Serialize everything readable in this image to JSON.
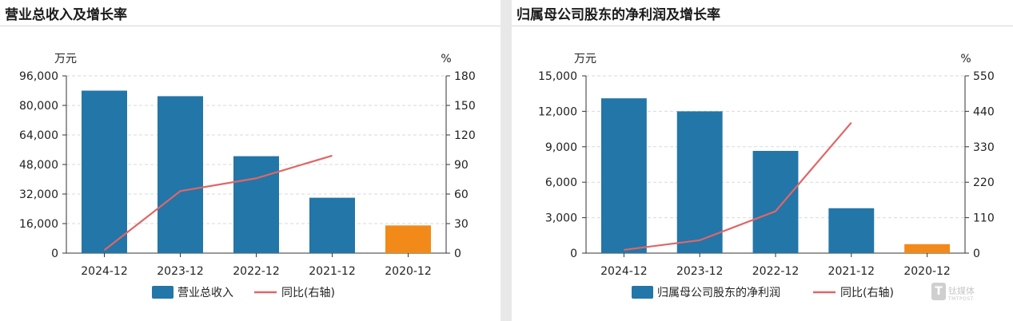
{
  "panels": [
    {
      "title": "营业总收入及增长率",
      "chart_data": {
        "type": "bar",
        "categories": [
          "2024-12",
          "2023-12",
          "2022-12",
          "2021-12",
          "2020-12"
        ],
        "series": [
          {
            "name": "营业总收入",
            "kind": "bar",
            "axis": "left",
            "values": [
              88000,
              85000,
              52500,
              30000,
              15000
            ],
            "color": "#2376a8",
            "highlight_color": "#f28a1a",
            "highlight_index": 4
          },
          {
            "name": "同比(右轴)",
            "kind": "line",
            "axis": "right",
            "values": [
              3,
              63,
              76,
              99,
              null
            ],
            "color": "#e06666"
          }
        ],
        "left_axis": {
          "unit": "万元",
          "ticks": [
            "0",
            "16,000",
            "32,000",
            "48,000",
            "64,000",
            "80,000",
            "96,000"
          ],
          "max": 96000
        },
        "right_axis": {
          "unit": "%",
          "ticks": [
            "0",
            "30",
            "60",
            "90",
            "120",
            "150",
            "180"
          ],
          "max": 180
        },
        "grid": true,
        "legend": "bottom"
      }
    },
    {
      "title": "归属母公司股东的净利润及增长率",
      "chart_data": {
        "type": "bar",
        "categories": [
          "2024-12",
          "2023-12",
          "2022-12",
          "2021-12",
          "2020-12"
        ],
        "series": [
          {
            "name": "归属母公司股东的净利润",
            "kind": "bar",
            "axis": "left",
            "values": [
              13100,
              12000,
              8650,
              3800,
              760
            ],
            "color": "#2376a8",
            "highlight_color": "#f28a1a",
            "highlight_index": 4
          },
          {
            "name": "同比(右轴)",
            "kind": "line",
            "axis": "right",
            "values": [
              10,
              40,
              130,
              405,
              null
            ],
            "color": "#e06666"
          }
        ],
        "left_axis": {
          "unit": "万元",
          "ticks": [
            "0",
            "3,000",
            "6,000",
            "9,000",
            "12,000",
            "15,000"
          ],
          "max": 15000
        },
        "right_axis": {
          "unit": "%",
          "ticks": [
            "0",
            "110",
            "220",
            "330",
            "440",
            "550"
          ],
          "max": 550
        },
        "grid": true,
        "legend": "bottom"
      }
    }
  ],
  "watermark": {
    "logo_char": "T",
    "cn": "钛媒体",
    "en": "TMTPOST"
  }
}
